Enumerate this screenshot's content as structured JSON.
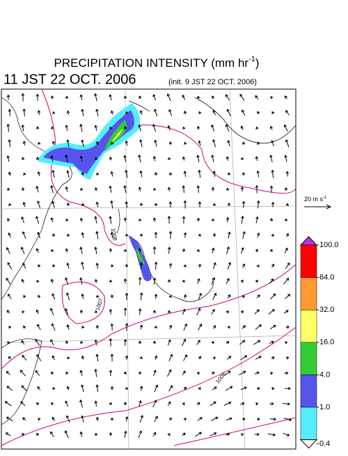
{
  "header": {
    "title": "PRECIPITATION INTENSITY (mm hr",
    "title_sup": "-1",
    "title_end": ")",
    "valid_time": "11 JST 22 OCT. 2006",
    "init_time": "(init. 9 JST 22 OCT. 2006)"
  },
  "reference_vector": {
    "label": "20 m s",
    "label_sup": "-1"
  },
  "isobar_labels": [
    "1008",
    "1007",
    "1008"
  ],
  "colorbar": {
    "ticks": [
      {
        "value": 100,
        "label": "100.0"
      },
      {
        "value": 64,
        "label": "64.0"
      },
      {
        "value": 32,
        "label": "32.0"
      },
      {
        "value": 16,
        "label": "16.0"
      },
      {
        "value": 4,
        "label": "4.0"
      },
      {
        "value": 1,
        "label": "1.0"
      },
      {
        "value": 0.4,
        "label": "0.4"
      }
    ],
    "colors": [
      "#ff0000",
      "#ff9933",
      "#ffff66",
      "#33cc33",
      "#5555ee",
      "#55eeff"
    ],
    "over_color": "#bb33ee",
    "under_color": "#ffffff"
  }
}
